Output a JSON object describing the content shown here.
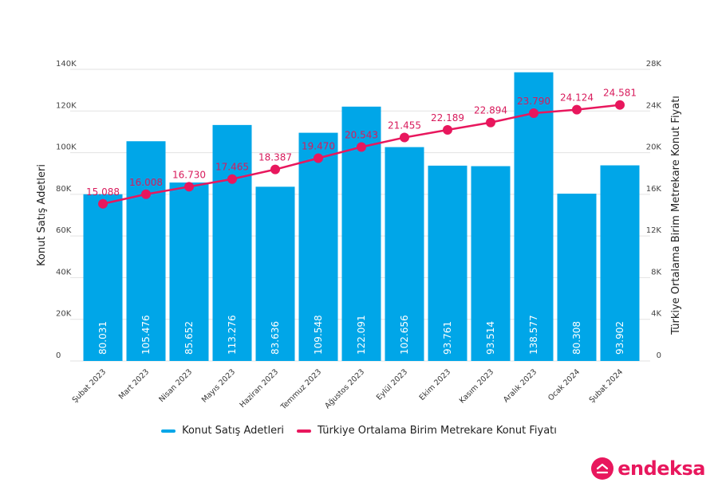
{
  "colors": {
    "bar": "#00A6E8",
    "line": "#E8175D",
    "line_label": "#D81B5C",
    "grid": "#E2E2E2",
    "brand": "#E8175D"
  },
  "chart_data": {
    "type": "bar",
    "title": "",
    "categories": [
      "Şubat 2023",
      "Mart 2023",
      "Nisan 2023",
      "Mayıs 2023",
      "Haziran 2023",
      "Temmuz 2023",
      "Ağustos 2023",
      "Eylül 2023",
      "Ekim 2023",
      "Kasım 2023",
      "Aralık 2023",
      "Ocak 2024",
      "Şubat 2024"
    ],
    "series": [
      {
        "name": "Konut Satış Adetleri",
        "type": "bar",
        "axis": "left",
        "values": [
          80031,
          105476,
          85652,
          113276,
          83636,
          109548,
          122091,
          102656,
          93761,
          93514,
          138577,
          80308,
          93902
        ],
        "labels": [
          "80.031",
          "105.476",
          "85.652",
          "113.276",
          "83.636",
          "109.548",
          "122.091",
          "102.656",
          "93.761",
          "93.514",
          "138.577",
          "80.308",
          "93.902"
        ]
      },
      {
        "name": "Türkiye Ortalama Birim Metrekare Konut Fiyatı",
        "type": "line",
        "axis": "right",
        "values": [
          15088,
          16008,
          16730,
          17465,
          18387,
          19470,
          20543,
          21455,
          22189,
          22894,
          23790,
          24124,
          24581
        ],
        "labels": [
          "15.088",
          "16.008",
          "16.730",
          "17.465",
          "18.387",
          "19.470",
          "20.543",
          "21.455",
          "22.189",
          "22.894",
          "23.790",
          "24.124",
          "24.581"
        ]
      }
    ],
    "ylabel": "Konut Satış Adetleri",
    "ylim": [
      0,
      140000
    ],
    "yticks": [
      0,
      20000,
      40000,
      60000,
      80000,
      100000,
      120000,
      140000
    ],
    "ytick_labels": [
      "0",
      "20K",
      "40K",
      "60K",
      "80K",
      "100K",
      "120K",
      "140K"
    ],
    "y2label": "Türkiye Ortalama Birim Metrekare Konut Fiyatı",
    "y2lim": [
      0,
      28000
    ],
    "y2ticks": [
      0,
      4000,
      8000,
      12000,
      16000,
      20000,
      24000,
      28000
    ],
    "y2tick_labels": [
      "0",
      "4K",
      "8K",
      "12K",
      "16K",
      "20K",
      "24K",
      "28K"
    ],
    "grid": true,
    "legend_position": "bottom-center"
  },
  "legend": {
    "items": [
      {
        "label": "Konut Satış Adetleri"
      },
      {
        "label": "Türkiye Ortalama Birim Metrekare Konut Fiyatı"
      }
    ]
  },
  "brand": {
    "name": "endeksa"
  }
}
